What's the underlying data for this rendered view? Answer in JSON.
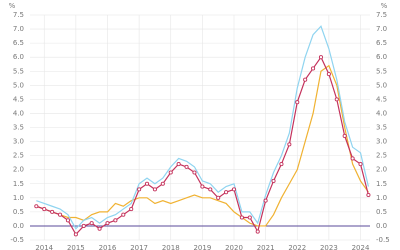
{
  "chart_data": {
    "type": "line",
    "y_label": "%",
    "x": [
      2013.75,
      2014.0,
      2014.25,
      2014.5,
      2014.75,
      2015.0,
      2015.25,
      2015.5,
      2015.75,
      2016.0,
      2016.25,
      2016.5,
      2016.75,
      2017.0,
      2017.25,
      2017.5,
      2017.75,
      2018.0,
      2018.25,
      2018.5,
      2018.75,
      2019.0,
      2019.25,
      2019.5,
      2019.75,
      2020.0,
      2020.25,
      2020.5,
      2020.75,
      2021.0,
      2021.25,
      2021.5,
      2021.75,
      2022.0,
      2022.25,
      2022.5,
      2022.75,
      2023.0,
      2023.25,
      2023.5,
      2023.75,
      2024.0,
      2024.25
    ],
    "series": [
      {
        "color": "#8fd4f0",
        "markers": false,
        "values": [
          0.9,
          0.8,
          0.7,
          0.6,
          0.4,
          -0.1,
          0.2,
          0.3,
          0.1,
          0.3,
          0.4,
          0.6,
          0.8,
          1.5,
          1.7,
          1.5,
          1.7,
          2.1,
          2.4,
          2.3,
          2.1,
          1.6,
          1.5,
          1.2,
          1.4,
          1.5,
          0.5,
          0.5,
          0.1,
          1.1,
          1.9,
          2.5,
          3.3,
          4.9,
          6.0,
          6.8,
          7.1,
          6.3,
          5.2,
          3.7,
          2.8,
          2.6,
          1.4
        ]
      },
      {
        "color": "#c4325c",
        "markers": true,
        "values": [
          0.7,
          0.6,
          0.5,
          0.4,
          0.2,
          -0.3,
          0.0,
          0.1,
          -0.1,
          0.1,
          0.2,
          0.4,
          0.6,
          1.3,
          1.5,
          1.3,
          1.5,
          1.9,
          2.2,
          2.1,
          1.9,
          1.4,
          1.3,
          1.0,
          1.2,
          1.3,
          0.3,
          0.3,
          -0.2,
          0.9,
          1.6,
          2.2,
          2.9,
          4.4,
          5.2,
          5.6,
          6.0,
          5.4,
          4.5,
          3.2,
          2.4,
          2.2,
          1.1
        ]
      },
      {
        "color": "#f0b232",
        "markers": false,
        "values": [
          0.7,
          0.6,
          0.5,
          0.4,
          0.3,
          0.3,
          0.2,
          0.4,
          0.5,
          0.5,
          0.8,
          0.7,
          0.9,
          1.0,
          1.0,
          0.8,
          0.9,
          0.8,
          0.9,
          1.0,
          1.1,
          1.0,
          1.0,
          0.9,
          0.8,
          0.5,
          0.3,
          0.1,
          0.0,
          0.0,
          0.4,
          1.0,
          1.5,
          2.0,
          3.0,
          4.0,
          5.5,
          5.7,
          5.0,
          3.5,
          2.2,
          1.6,
          1.2
        ]
      }
    ],
    "xlim": [
      2013.55,
      2024.3
    ],
    "xticks": [
      2014,
      2015,
      2016,
      2017,
      2018,
      2019,
      2020,
      2021,
      2022,
      2023,
      2024
    ],
    "ylim": [
      -0.5,
      7.5
    ],
    "yticks": [
      -0.5,
      {
        "value": 0,
        "label": "0.0"
      },
      0.5,
      {
        "value": 1,
        "label": "1.0"
      },
      1.5,
      {
        "value": 2,
        "label": "2.0"
      },
      2.5,
      {
        "value": 3,
        "label": "3.0"
      },
      3.5,
      {
        "value": 4,
        "label": "4.0"
      },
      4.5,
      {
        "value": 5,
        "label": "5.0"
      },
      5.5,
      {
        "value": 6,
        "label": "6.0"
      },
      6.5,
      {
        "value": 7,
        "label": "7.0"
      },
      7.5
    ],
    "grid": true
  }
}
